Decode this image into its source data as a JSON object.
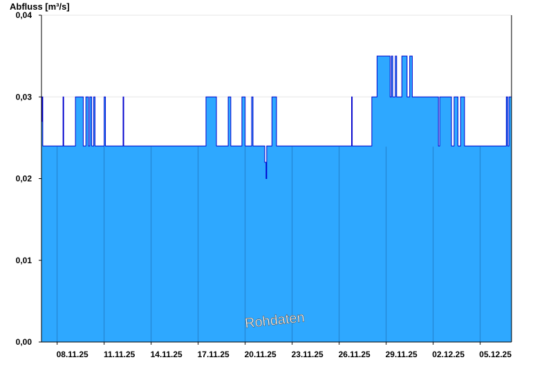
{
  "chart_data": {
    "type": "area",
    "ylabel": "Abfluss [m³/s]",
    "ylim": [
      0,
      0.04
    ],
    "yticks": [
      "0,00",
      "0,01",
      "0,02",
      "0,03",
      "0,04"
    ],
    "ytick_values": [
      0,
      0.01,
      0.02,
      0.03,
      0.04
    ],
    "xlim": [
      "2025-11-07",
      "2025-12-07"
    ],
    "xtick_labels": [
      "08.11.25",
      "11.11.25",
      "14.11.25",
      "17.11.25",
      "20.11.25",
      "23.11.25",
      "26.11.25",
      "29.11.25",
      "02.12.25",
      "05.12.25"
    ],
    "xtick_dates": [
      "2025-11-08",
      "2025-11-11",
      "2025-11-14",
      "2025-11-17",
      "2025-11-20",
      "2025-11-23",
      "2025-11-26",
      "2025-11-29",
      "2025-12-02",
      "2025-12-05"
    ],
    "grid": true,
    "watermark": "Rohdaten",
    "colors": {
      "fill": "#2ea8ff",
      "line": "#0000cc",
      "grid": "#e6e6e6",
      "axis": "#000000",
      "divider": "#1a5fa0"
    },
    "series": [
      {
        "unit": "m³/s",
        "points": [
          [
            "2025-11-07 00:00",
            0.027
          ],
          [
            "2025-11-07 01:00",
            0.03
          ],
          [
            "2025-11-07 02:00",
            0.024
          ],
          [
            "2025-11-08 09:00",
            0.03
          ],
          [
            "2025-11-08 10:00",
            0.024
          ],
          [
            "2025-11-09 04:00",
            0.03
          ],
          [
            "2025-11-09 16:00",
            0.024
          ],
          [
            "2025-11-09 20:00",
            0.03
          ],
          [
            "2025-11-10 00:00",
            0.024
          ],
          [
            "2025-11-10 02:00",
            0.03
          ],
          [
            "2025-11-10 05:00",
            0.024
          ],
          [
            "2025-11-10 08:00",
            0.03
          ],
          [
            "2025-11-10 10:00",
            0.024
          ],
          [
            "2025-11-11 00:00",
            0.03
          ],
          [
            "2025-11-11 02:00",
            0.024
          ],
          [
            "2025-11-12 05:00",
            0.03
          ],
          [
            "2025-11-12 06:00",
            0.024
          ],
          [
            "2025-11-17 12:00",
            0.03
          ],
          [
            "2025-11-18 04:00",
            0.024
          ],
          [
            "2025-11-18 22:00",
            0.03
          ],
          [
            "2025-11-19 02:00",
            0.024
          ],
          [
            "2025-11-19 19:00",
            0.03
          ],
          [
            "2025-11-20 00:00",
            0.024
          ],
          [
            "2025-11-20 10:00",
            0.03
          ],
          [
            "2025-11-20 12:00",
            0.024
          ],
          [
            "2025-11-21 06:00",
            0.022
          ],
          [
            "2025-11-21 08:00",
            0.02
          ],
          [
            "2025-11-21 09:00",
            0.024
          ],
          [
            "2025-11-21 17:00",
            0.03
          ],
          [
            "2025-11-22 00:00",
            0.024
          ],
          [
            "2025-11-26 19:00",
            0.03
          ],
          [
            "2025-11-26 20:00",
            0.024
          ],
          [
            "2025-11-28 02:00",
            0.03
          ],
          [
            "2025-11-28 10:00",
            0.035
          ],
          [
            "2025-11-29 06:00",
            0.03
          ],
          [
            "2025-11-29 08:00",
            0.035
          ],
          [
            "2025-11-29 10:00",
            0.03
          ],
          [
            "2025-11-29 14:00",
            0.035
          ],
          [
            "2025-11-29 16:00",
            0.03
          ],
          [
            "2025-11-30 00:00",
            0.035
          ],
          [
            "2025-11-30 08:00",
            0.03
          ],
          [
            "2025-11-30 12:00",
            0.035
          ],
          [
            "2025-11-30 16:00",
            0.03
          ],
          [
            "2025-12-02 08:00",
            0.024
          ],
          [
            "2025-12-02 10:00",
            0.03
          ],
          [
            "2025-12-03 04:00",
            0.024
          ],
          [
            "2025-12-03 08:00",
            0.03
          ],
          [
            "2025-12-03 14:00",
            0.024
          ],
          [
            "2025-12-03 18:00",
            0.03
          ],
          [
            "2025-12-04 00:00",
            0.024
          ],
          [
            "2025-12-06 16:00",
            0.03
          ],
          [
            "2025-12-06 18:00",
            0.024
          ],
          [
            "2025-12-06 20:00",
            0.03
          ],
          [
            "2025-12-07 00:00",
            0.03
          ]
        ]
      }
    ]
  }
}
